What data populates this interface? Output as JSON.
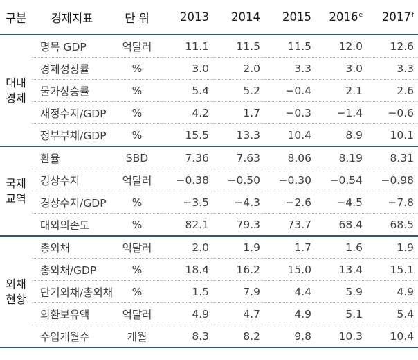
{
  "header": {
    "group": "구분",
    "indicator": "경제지표",
    "unit": "단 위",
    "years": [
      {
        "label": "2013",
        "mark": ""
      },
      {
        "label": "2014",
        "mark": ""
      },
      {
        "label": "2015",
        "mark": ""
      },
      {
        "label": "2016",
        "mark": "e"
      },
      {
        "label": "2017",
        "mark": "f"
      }
    ]
  },
  "groups": [
    {
      "name_line1": "대내",
      "name_line2": "경제",
      "rows": [
        {
          "label": "명목 GDP",
          "unit": "억달러",
          "values": [
            "11.1",
            "11.5",
            "11.5",
            "12.0",
            "12.6"
          ]
        },
        {
          "label": "경제성장률",
          "unit": "%",
          "values": [
            "3.0",
            "2.0",
            "3.3",
            "3.0",
            "3.3"
          ]
        },
        {
          "label": "물가상승률",
          "unit": "%",
          "values": [
            "5.4",
            "5.2",
            "−0.4",
            "2.1",
            "2.6"
          ]
        },
        {
          "label": "재정수지/GDP",
          "unit": "%",
          "values": [
            "4.2",
            "1.7",
            "−0.3",
            "−1.4",
            "−0.6"
          ]
        },
        {
          "label": "정부부채/GDP",
          "unit": "%",
          "values": [
            "15.5",
            "13.3",
            "10.4",
            "8.9",
            "10.1"
          ]
        }
      ]
    },
    {
      "name_line1": "국제",
      "name_line2": "교역",
      "rows": [
        {
          "label": "환율",
          "unit": "SBD",
          "values": [
            "7.36",
            "7.63",
            "8.06",
            "8.19",
            "8.31"
          ]
        },
        {
          "label": "경상수지",
          "unit": "억달러",
          "values": [
            "−0.38",
            "−0.50",
            "−0.30",
            "−0.54",
            "−0.98"
          ]
        },
        {
          "label": "경상수지/GDP",
          "unit": "%",
          "values": [
            "−3.5",
            "−4.3",
            "−2.6",
            "−4.5",
            "−7.8"
          ]
        },
        {
          "label": "대외의존도",
          "unit": "%",
          "values": [
            "82.1",
            "79.3",
            "73.7",
            "68.4",
            "68.5"
          ]
        }
      ]
    },
    {
      "name_line1": "외채",
      "name_line2": "현황",
      "rows": [
        {
          "label": "총외채",
          "unit": "억달러",
          "values": [
            "2.0",
            "1.9",
            "1.7",
            "1.6",
            "1.9"
          ]
        },
        {
          "label": "총외채/GDP",
          "unit": "%",
          "values": [
            "18.4",
            "16.2",
            "15.0",
            "13.4",
            "15.1"
          ]
        },
        {
          "label": "단기외채/총외채",
          "unit": "%",
          "values": [
            "1.5",
            "7.9",
            "4.4",
            "5.9",
            "4.9"
          ]
        },
        {
          "label": "외환보유액",
          "unit": "억달러",
          "values": [
            "4.9",
            "4.7",
            "4.9",
            "5.1",
            "5.4"
          ]
        },
        {
          "label": "수입개월수",
          "unit": "개월",
          "values": [
            "8.3",
            "8.2",
            "9.8",
            "10.3",
            "10.4"
          ]
        }
      ]
    }
  ]
}
